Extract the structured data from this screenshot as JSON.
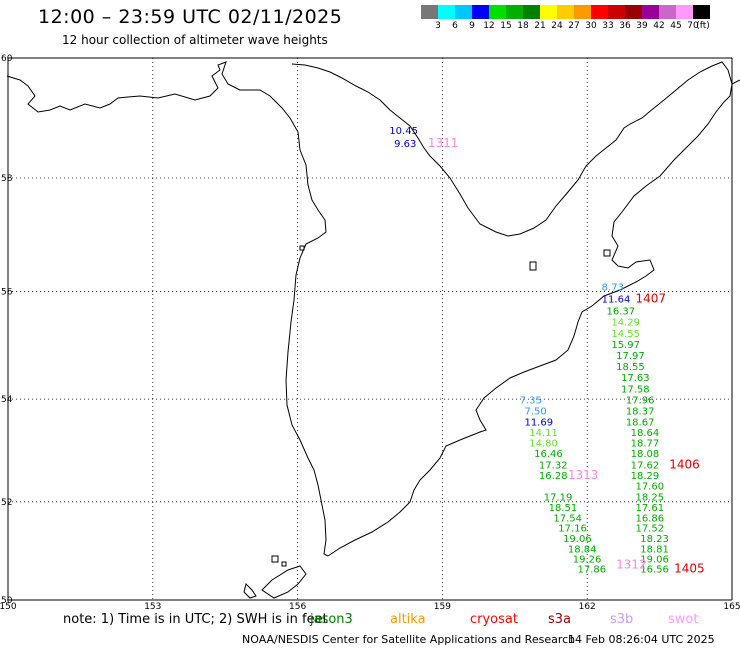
{
  "header": {
    "title": "12:00 – 23:59 UTC 02/11/2025",
    "subtitle": "12 hour collection of altimeter wave heights"
  },
  "colorbar": {
    "colors": [
      "#777777",
      "#00ffff",
      "#00c8ff",
      "#0000ff",
      "#00e000",
      "#00b000",
      "#008000",
      "#ffff00",
      "#ffcc00",
      "#ff9900",
      "#ff0000",
      "#cc0000",
      "#990000",
      "#990099",
      "#cc66cc",
      "#ff99ff",
      "#000000"
    ],
    "labels": [
      "3",
      "6",
      "9",
      "12",
      "15",
      "18",
      "21",
      "24",
      "27",
      "30",
      "33",
      "36",
      "39",
      "42",
      "45",
      "70",
      "(ft)"
    ]
  },
  "map": {
    "lon_ticks": [
      "150",
      "153",
      "156",
      "159",
      "162",
      "165"
    ],
    "lat_ticks": [
      "60",
      "58",
      "56",
      "54",
      "52",
      "50"
    ]
  },
  "observations": [
    {
      "lon": 157.9,
      "lat": 58.75,
      "text": "10.45",
      "color": "#0000cc"
    },
    {
      "lon": 158.0,
      "lat": 58.53,
      "text": "9.63",
      "color": "#0000cc"
    },
    {
      "lon": 158.7,
      "lat": 58.53,
      "text": "1311",
      "color": "#ff88dd"
    },
    {
      "lon": 162.3,
      "lat": 56.02,
      "text": "8.73",
      "color": "#3399ff"
    },
    {
      "lon": 162.3,
      "lat": 55.8,
      "text": "11.64",
      "color": "#0000cc"
    },
    {
      "lon": 163.0,
      "lat": 55.8,
      "text": "1407",
      "color": "#dd0000"
    },
    {
      "lon": 162.4,
      "lat": 55.58,
      "text": "16.37",
      "color": "#00aa00"
    },
    {
      "lon": 162.5,
      "lat": 55.38,
      "text": "14.29",
      "color": "#66dd33"
    },
    {
      "lon": 162.5,
      "lat": 55.17,
      "text": "14.55",
      "color": "#66dd33"
    },
    {
      "lon": 162.5,
      "lat": 54.96,
      "text": "15.97",
      "color": "#00aa00"
    },
    {
      "lon": 162.6,
      "lat": 54.76,
      "text": "17.97",
      "color": "#00aa00"
    },
    {
      "lon": 162.6,
      "lat": 54.55,
      "text": "18.55",
      "color": "#00aa00"
    },
    {
      "lon": 162.7,
      "lat": 54.34,
      "text": "17.63",
      "color": "#00aa00"
    },
    {
      "lon": 162.7,
      "lat": 54.13,
      "text": "17.58",
      "color": "#00aa00"
    },
    {
      "lon": 162.8,
      "lat": 53.92,
      "text": "17.96",
      "color": "#00aa00"
    },
    {
      "lon": 162.8,
      "lat": 53.71,
      "text": "18.37",
      "color": "#00aa00"
    },
    {
      "lon": 162.8,
      "lat": 53.5,
      "text": "18.67",
      "color": "#00aa00"
    },
    {
      "lon": 162.9,
      "lat": 53.29,
      "text": "18.64",
      "color": "#00aa00"
    },
    {
      "lon": 162.9,
      "lat": 53.09,
      "text": "18.77",
      "color": "#00aa00"
    },
    {
      "lon": 162.9,
      "lat": 52.88,
      "text": "18.08",
      "color": "#00aa00"
    },
    {
      "lon": 162.9,
      "lat": 52.66,
      "text": "17.62",
      "color": "#00aa00"
    },
    {
      "lon": 163.7,
      "lat": 52.66,
      "text": "1406",
      "color": "#dd0000"
    },
    {
      "lon": 162.9,
      "lat": 52.45,
      "text": "18.29",
      "color": "#00aa00"
    },
    {
      "lon": 163.0,
      "lat": 52.24,
      "text": "17.60",
      "color": "#00aa00"
    },
    {
      "lon": 163.0,
      "lat": 52.03,
      "text": "18.25",
      "color": "#00aa00"
    },
    {
      "lon": 163.0,
      "lat": 51.82,
      "text": "17.61",
      "color": "#00aa00"
    },
    {
      "lon": 163.0,
      "lat": 51.61,
      "text": "16.86",
      "color": "#00aa00"
    },
    {
      "lon": 163.0,
      "lat": 51.4,
      "text": "17.52",
      "color": "#00aa00"
    },
    {
      "lon": 163.1,
      "lat": 51.19,
      "text": "18.23",
      "color": "#00aa00"
    },
    {
      "lon": 163.1,
      "lat": 50.98,
      "text": "18.81",
      "color": "#00aa00"
    },
    {
      "lon": 163.1,
      "lat": 50.77,
      "text": "19.06",
      "color": "#00aa00"
    },
    {
      "lon": 163.1,
      "lat": 50.57,
      "text": "16.56",
      "color": "#00aa00"
    },
    {
      "lon": 163.8,
      "lat": 50.57,
      "text": "1405",
      "color": "#dd0000"
    },
    {
      "lon": 162.6,
      "lat": 50.65,
      "text": "1312",
      "color": "#ff88dd"
    },
    {
      "lon": 160.6,
      "lat": 53.92,
      "text": "7.35",
      "color": "#3399ff"
    },
    {
      "lon": 160.7,
      "lat": 53.71,
      "text": "7.50",
      "color": "#3399ff"
    },
    {
      "lon": 160.7,
      "lat": 53.5,
      "text": "11.69",
      "color": "#0000cc"
    },
    {
      "lon": 160.8,
      "lat": 53.29,
      "text": "14.11",
      "color": "#66dd33"
    },
    {
      "lon": 160.8,
      "lat": 53.09,
      "text": "14.80",
      "color": "#66dd33"
    },
    {
      "lon": 160.9,
      "lat": 52.88,
      "text": "16.46",
      "color": "#00aa00"
    },
    {
      "lon": 161.0,
      "lat": 52.66,
      "text": "17.32",
      "color": "#00aa00"
    },
    {
      "lon": 161.0,
      "lat": 52.45,
      "text": "16.28",
      "color": "#00aa00"
    },
    {
      "lon": 161.6,
      "lat": 52.45,
      "text": "1313",
      "color": "#ff88dd"
    },
    {
      "lon": 161.1,
      "lat": 52.03,
      "text": "17.19",
      "color": "#00aa00"
    },
    {
      "lon": 161.2,
      "lat": 51.82,
      "text": "18.51",
      "color": "#00aa00"
    },
    {
      "lon": 161.3,
      "lat": 51.61,
      "text": "17.54",
      "color": "#00aa00"
    },
    {
      "lon": 161.4,
      "lat": 51.4,
      "text": "17.16",
      "color": "#00aa00"
    },
    {
      "lon": 161.5,
      "lat": 51.19,
      "text": "19.06",
      "color": "#00aa00"
    },
    {
      "lon": 161.6,
      "lat": 50.98,
      "text": "18.84",
      "color": "#00aa00"
    },
    {
      "lon": 161.7,
      "lat": 50.77,
      "text": "19.26",
      "color": "#00aa00"
    },
    {
      "lon": 161.8,
      "lat": 50.57,
      "text": "17.86",
      "color": "#00aa00"
    }
  ],
  "footer": {
    "note": "note: 1) Time is in UTC; 2) SWH is in feet",
    "satellites": [
      {
        "name": "jason3",
        "color": "#008000"
      },
      {
        "name": "altika",
        "color": "#ff9900"
      },
      {
        "name": "cryosat",
        "color": "#ff0000"
      },
      {
        "name": "s3a",
        "color": "#990000"
      },
      {
        "name": "s3b",
        "color": "#cc99ff"
      },
      {
        "name": "swot",
        "color": "#ff99ff"
      }
    ],
    "credit": "NOAA/NESDIS Center for Satellite Applications and Research",
    "generated": "14 Feb 08:26:04 UTC 2025"
  }
}
